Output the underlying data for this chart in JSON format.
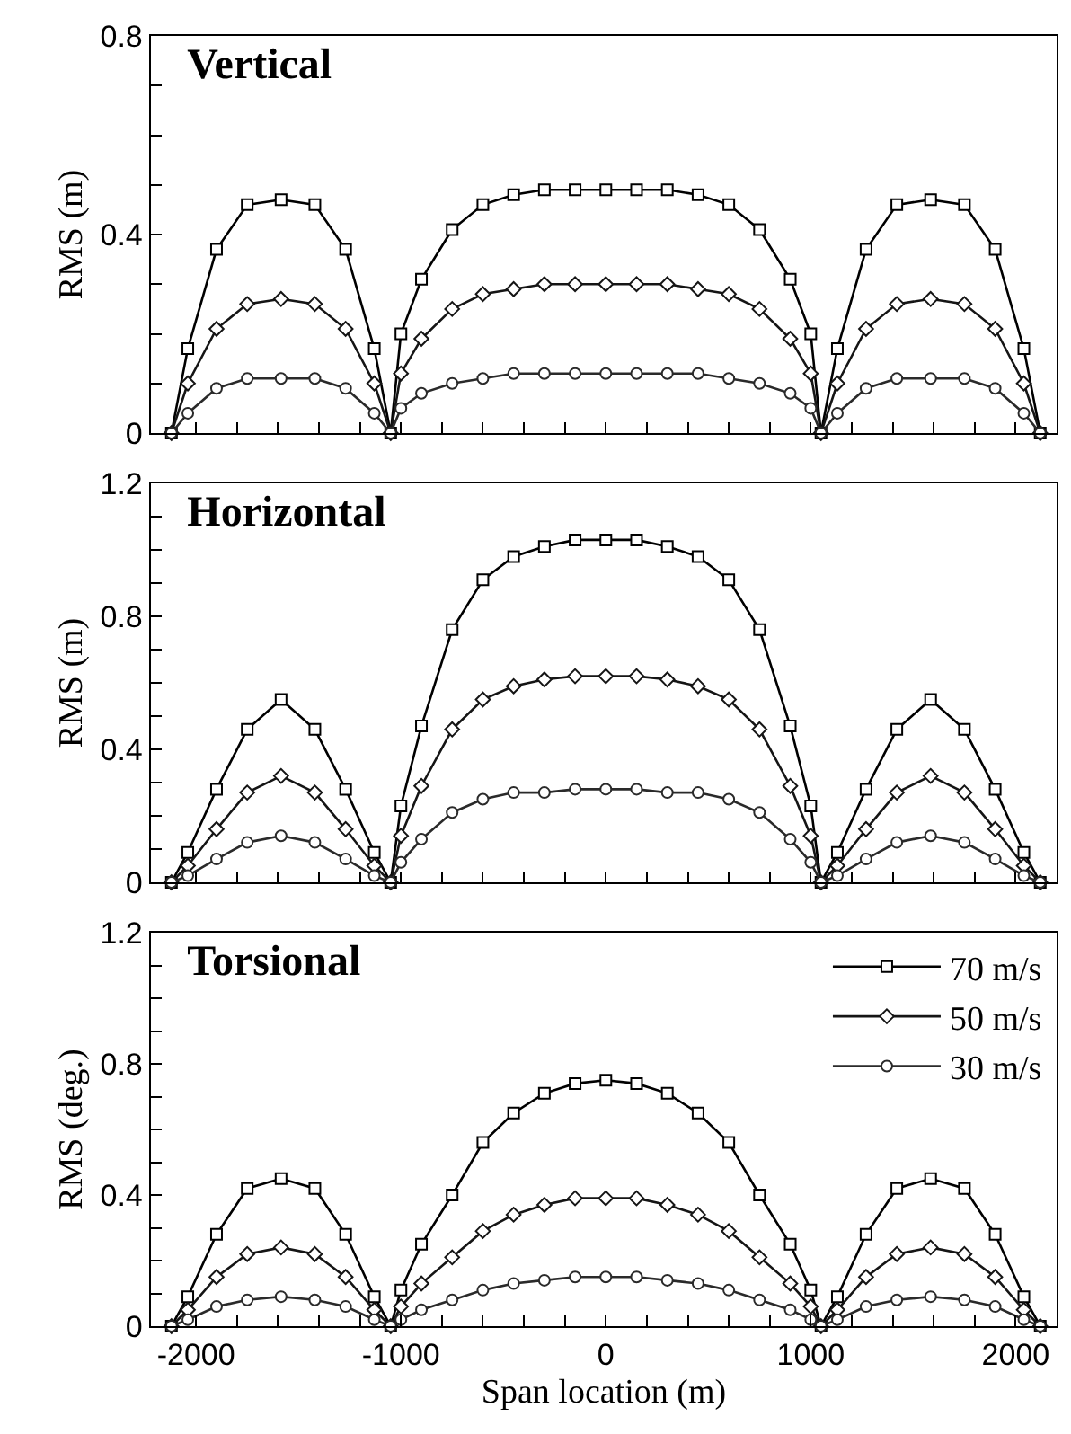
{
  "chart_data": [
    {
      "type": "line",
      "title": "Vertical",
      "ylabel": "RMS (m)",
      "xlim": [
        -2220,
        2200
      ],
      "ylim": [
        0,
        0.8
      ],
      "xticks": [
        -2000,
        {
          "value": -1800,
          "label": null
        },
        {
          "value": -1600,
          "label": null
        },
        {
          "value": -1400,
          "label": null
        },
        {
          "value": -1200,
          "label": null
        },
        -1000,
        {
          "value": -800,
          "label": null
        },
        {
          "value": -600,
          "label": null
        },
        {
          "value": -400,
          "label": null
        },
        {
          "value": -200,
          "label": null
        },
        0,
        {
          "value": 200,
          "label": null
        },
        {
          "value": 400,
          "label": null
        },
        {
          "value": 600,
          "label": null
        },
        {
          "value": 800,
          "label": null
        },
        1000,
        {
          "value": 1200,
          "label": null
        },
        {
          "value": 1400,
          "label": null
        },
        {
          "value": 1600,
          "label": null
        },
        {
          "value": 1800,
          "label": null
        },
        2000
      ],
      "yticks": [
        0,
        {
          "value": 0.1,
          "label": null
        },
        {
          "value": 0.2,
          "label": null
        },
        {
          "value": 0.3,
          "label": null
        },
        0.4,
        {
          "value": 0.5,
          "label": null
        },
        {
          "value": 0.6,
          "label": null
        },
        {
          "value": 0.7,
          "label": null
        },
        0.8
      ],
      "tick_labels": "y",
      "grid": false,
      "legend": false,
      "line_style": "solid",
      "x": [
        -2120,
        -2040,
        -1900,
        -1750,
        -1585,
        -1420,
        -1270,
        -1130,
        -1050,
        -1000,
        -900,
        -750,
        -600,
        -450,
        -300,
        -150,
        0,
        150,
        300,
        450,
        600,
        750,
        900,
        1000,
        1050,
        1130,
        1270,
        1420,
        1585,
        1750,
        1900,
        2040,
        2120
      ],
      "series": [
        {
          "color": "#000000",
          "marker": "square",
          "values": [
            0,
            0.17,
            0.37,
            0.46,
            0.47,
            0.46,
            0.37,
            0.17,
            0,
            0.2,
            0.31,
            0.41,
            0.46,
            0.48,
            0.49,
            0.49,
            0.49,
            0.49,
            0.49,
            0.48,
            0.46,
            0.41,
            0.31,
            0.2,
            0,
            0.17,
            0.37,
            0.46,
            0.47,
            0.46,
            0.37,
            0.17,
            0
          ]
        },
        {
          "color": "#151515",
          "marker": "diamond",
          "values": [
            0,
            0.1,
            0.21,
            0.26,
            0.27,
            0.26,
            0.21,
            0.1,
            0,
            0.12,
            0.19,
            0.25,
            0.28,
            0.29,
            0.3,
            0.3,
            0.3,
            0.3,
            0.3,
            0.29,
            0.28,
            0.25,
            0.19,
            0.12,
            0,
            0.1,
            0.21,
            0.26,
            0.27,
            0.26,
            0.21,
            0.1,
            0
          ]
        },
        {
          "color": "#2a2a2a",
          "marker": "circle",
          "values": [
            0,
            0.04,
            0.09,
            0.11,
            0.11,
            0.11,
            0.09,
            0.04,
            0,
            0.05,
            0.08,
            0.1,
            0.11,
            0.12,
            0.12,
            0.12,
            0.12,
            0.12,
            0.12,
            0.12,
            0.11,
            0.1,
            0.08,
            0.05,
            0,
            0.04,
            0.09,
            0.11,
            0.11,
            0.11,
            0.09,
            0.04,
            0
          ]
        }
      ]
    },
    {
      "type": "line",
      "title": "Horizontal",
      "ylabel": "RMS (m)",
      "xlim": [
        -2220,
        2200
      ],
      "ylim": [
        0,
        1.2
      ],
      "xticks": [
        -2000,
        {
          "value": -1800,
          "label": null
        },
        {
          "value": -1600,
          "label": null
        },
        {
          "value": -1400,
          "label": null
        },
        {
          "value": -1200,
          "label": null
        },
        -1000,
        {
          "value": -800,
          "label": null
        },
        {
          "value": -600,
          "label": null
        },
        {
          "value": -400,
          "label": null
        },
        {
          "value": -200,
          "label": null
        },
        0,
        {
          "value": 200,
          "label": null
        },
        {
          "value": 400,
          "label": null
        },
        {
          "value": 600,
          "label": null
        },
        {
          "value": 800,
          "label": null
        },
        1000,
        {
          "value": 1200,
          "label": null
        },
        {
          "value": 1400,
          "label": null
        },
        {
          "value": 1600,
          "label": null
        },
        {
          "value": 1800,
          "label": null
        },
        2000
      ],
      "yticks": [
        0,
        {
          "value": 0.1,
          "label": null
        },
        {
          "value": 0.2,
          "label": null
        },
        {
          "value": 0.3,
          "label": null
        },
        0.4,
        {
          "value": 0.5,
          "label": null
        },
        {
          "value": 0.6,
          "label": null
        },
        {
          "value": 0.7,
          "label": null
        },
        0.8,
        {
          "value": 0.9,
          "label": null
        },
        {
          "value": 1.0,
          "label": null
        },
        {
          "value": 1.1,
          "label": null
        },
        1.2
      ],
      "tick_labels": "y",
      "grid": false,
      "legend": false,
      "line_style": "solid",
      "x": [
        -2120,
        -2040,
        -1900,
        -1750,
        -1585,
        -1420,
        -1270,
        -1130,
        -1050,
        -1000,
        -900,
        -750,
        -600,
        -450,
        -300,
        -150,
        0,
        150,
        300,
        450,
        600,
        750,
        900,
        1000,
        1050,
        1130,
        1270,
        1420,
        1585,
        1750,
        1900,
        2040,
        2120
      ],
      "series": [
        {
          "color": "#000000",
          "marker": "square",
          "values": [
            0,
            0.09,
            0.28,
            0.46,
            0.55,
            0.46,
            0.28,
            0.09,
            0,
            0.23,
            0.47,
            0.76,
            0.91,
            0.98,
            1.01,
            1.03,
            1.03,
            1.03,
            1.01,
            0.98,
            0.91,
            0.76,
            0.47,
            0.23,
            0,
            0.09,
            0.28,
            0.46,
            0.55,
            0.46,
            0.28,
            0.09,
            0
          ]
        },
        {
          "color": "#151515",
          "marker": "diamond",
          "values": [
            0,
            0.05,
            0.16,
            0.27,
            0.32,
            0.27,
            0.16,
            0.05,
            0,
            0.14,
            0.29,
            0.46,
            0.55,
            0.59,
            0.61,
            0.62,
            0.62,
            0.62,
            0.61,
            0.59,
            0.55,
            0.46,
            0.29,
            0.14,
            0,
            0.05,
            0.16,
            0.27,
            0.32,
            0.27,
            0.16,
            0.05,
            0
          ]
        },
        {
          "color": "#2a2a2a",
          "marker": "circle",
          "values": [
            0,
            0.02,
            0.07,
            0.12,
            0.14,
            0.12,
            0.07,
            0.02,
            0,
            0.06,
            0.13,
            0.21,
            0.25,
            0.27,
            0.27,
            0.28,
            0.28,
            0.28,
            0.27,
            0.27,
            0.25,
            0.21,
            0.13,
            0.06,
            0,
            0.02,
            0.07,
            0.12,
            0.14,
            0.12,
            0.07,
            0.02,
            0
          ]
        }
      ]
    },
    {
      "type": "line",
      "title": "Torsional",
      "xlabel": "Span location (m)",
      "ylabel": "RMS (deg.)",
      "xlim": [
        -2220,
        2200
      ],
      "ylim": [
        0,
        1.2
      ],
      "xticks": [
        -2000,
        {
          "value": -1800,
          "label": null
        },
        {
          "value": -1600,
          "label": null
        },
        {
          "value": -1400,
          "label": null
        },
        {
          "value": -1200,
          "label": null
        },
        -1000,
        {
          "value": -800,
          "label": null
        },
        {
          "value": -600,
          "label": null
        },
        {
          "value": -400,
          "label": null
        },
        {
          "value": -200,
          "label": null
        },
        0,
        {
          "value": 200,
          "label": null
        },
        {
          "value": 400,
          "label": null
        },
        {
          "value": 600,
          "label": null
        },
        {
          "value": 800,
          "label": null
        },
        1000,
        {
          "value": 1200,
          "label": null
        },
        {
          "value": 1400,
          "label": null
        },
        {
          "value": 1600,
          "label": null
        },
        {
          "value": 1800,
          "label": null
        },
        2000
      ],
      "yticks": [
        0,
        {
          "value": 0.1,
          "label": null
        },
        {
          "value": 0.2,
          "label": null
        },
        {
          "value": 0.3,
          "label": null
        },
        0.4,
        {
          "value": 0.5,
          "label": null
        },
        {
          "value": 0.6,
          "label": null
        },
        {
          "value": 0.7,
          "label": null
        },
        0.8,
        {
          "value": 0.9,
          "label": null
        },
        {
          "value": 1.0,
          "label": null
        },
        {
          "value": 1.1,
          "label": null
        },
        1.2
      ],
      "grid": false,
      "legend": "top right",
      "line_style": "solid",
      "x": [
        -2120,
        -2040,
        -1900,
        -1750,
        -1585,
        -1420,
        -1270,
        -1130,
        -1050,
        -1000,
        -900,
        -750,
        -600,
        -450,
        -300,
        -150,
        0,
        150,
        300,
        450,
        600,
        750,
        900,
        1000,
        1050,
        1130,
        1270,
        1420,
        1585,
        1750,
        1900,
        2040,
        2120
      ],
      "series": [
        {
          "name": "70 m/s",
          "color": "#000000",
          "marker": "square",
          "values": [
            0,
            0.09,
            0.28,
            0.42,
            0.45,
            0.42,
            0.28,
            0.09,
            0,
            0.11,
            0.25,
            0.4,
            0.56,
            0.65,
            0.71,
            0.74,
            0.75,
            0.74,
            0.71,
            0.65,
            0.56,
            0.4,
            0.25,
            0.11,
            0,
            0.09,
            0.28,
            0.42,
            0.45,
            0.42,
            0.28,
            0.09,
            0
          ]
        },
        {
          "name": "50 m/s",
          "color": "#151515",
          "marker": "diamond",
          "values": [
            0,
            0.05,
            0.15,
            0.22,
            0.24,
            0.22,
            0.15,
            0.05,
            0,
            0.06,
            0.13,
            0.21,
            0.29,
            0.34,
            0.37,
            0.39,
            0.39,
            0.39,
            0.37,
            0.34,
            0.29,
            0.21,
            0.13,
            0.06,
            0,
            0.05,
            0.15,
            0.22,
            0.24,
            0.22,
            0.15,
            0.05,
            0
          ]
        },
        {
          "name": "30 m/s",
          "color": "#2a2a2a",
          "marker": "circle",
          "values": [
            0,
            0.02,
            0.06,
            0.08,
            0.09,
            0.08,
            0.06,
            0.02,
            0,
            0.02,
            0.05,
            0.08,
            0.11,
            0.13,
            0.14,
            0.15,
            0.15,
            0.15,
            0.14,
            0.13,
            0.11,
            0.08,
            0.05,
            0.02,
            0,
            0.02,
            0.06,
            0.08,
            0.09,
            0.08,
            0.06,
            0.02,
            0
          ]
        }
      ]
    }
  ]
}
